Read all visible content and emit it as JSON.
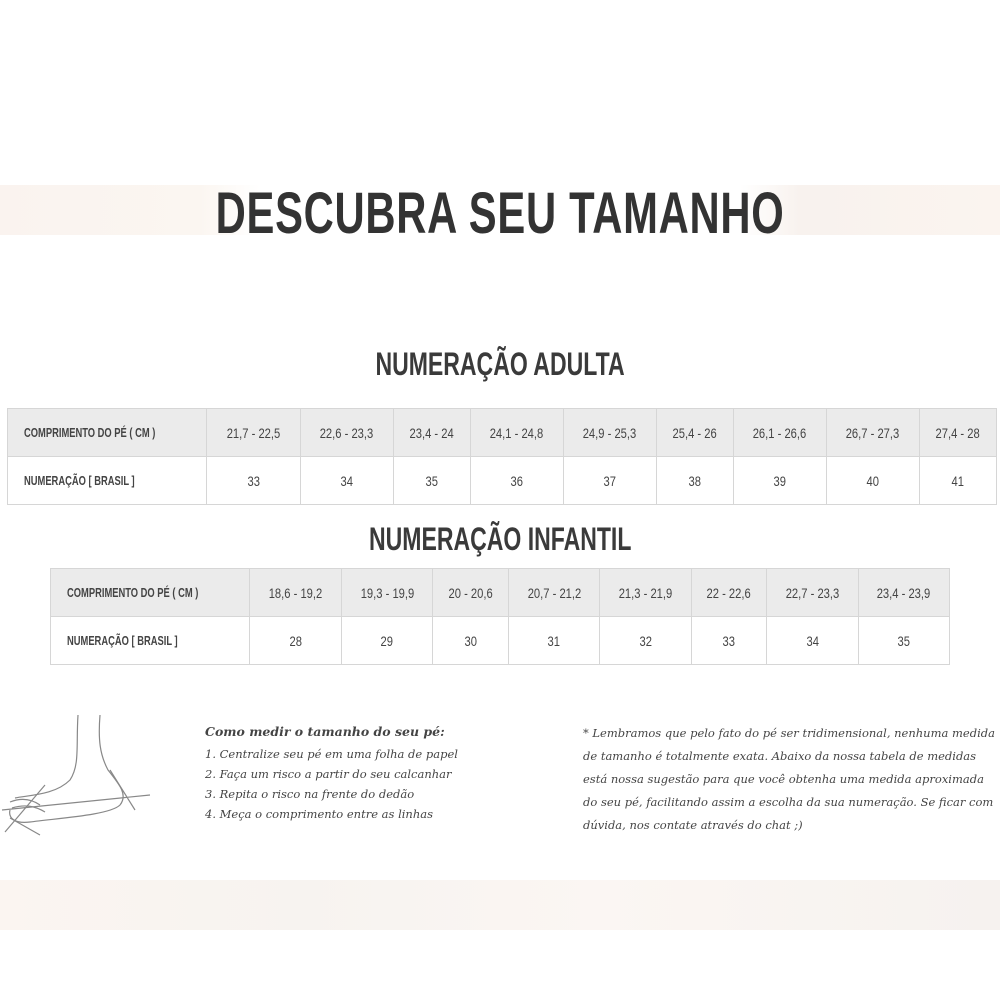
{
  "title": "DESCUBRA SEU TAMANHO",
  "adult": {
    "title": "NUMERAÇÃO ADULTA",
    "row_labels": [
      "COMPRIMENTO DO PÉ ( CM )",
      "NUMERAÇÃO [ BRASIL ]"
    ],
    "lengths": [
      "21,7 - 22,5",
      "22,6 - 23,3",
      "23,4 - 24",
      "24,1 - 24,8",
      "24,9 - 25,3",
      "25,4 - 26",
      "26,1 - 26,6",
      "26,7 - 27,3",
      "27,4 - 28"
    ],
    "sizes": [
      "33",
      "34",
      "35",
      "36",
      "37",
      "38",
      "39",
      "40",
      "41"
    ]
  },
  "child": {
    "title": "NUMERAÇÃO INFANTIL",
    "row_labels": [
      "COMPRIMENTO DO PÉ ( CM )",
      "NUMERAÇÃO [ BRASIL ]"
    ],
    "lengths": [
      "18,6 - 19,2",
      "19,3 - 19,9",
      "20 - 20,6",
      "20,7 - 21,2",
      "21,3 - 21,9",
      "22 - 22,6",
      "22,7 - 23,3",
      "23,4 - 23,9"
    ],
    "sizes": [
      "28",
      "29",
      "30",
      "31",
      "32",
      "33",
      "34",
      "35"
    ]
  },
  "howto": {
    "heading": "Como medir o tamanho do seu pé:",
    "steps": [
      "1. Centralize seu pé em uma folha de papel",
      "2. Faça um risco a partir do seu calcanhar",
      "3. Repita o risco na frente do dedão",
      "4. Meça o comprimento entre as linhas"
    ]
  },
  "note": "* Lembramos que pelo fato do pé ser tridimensional, nenhuma medida de tamanho é totalmente exata. Abaixo da nossa tabela de medidas está nossa sugestão para que você obtenha uma medida aproximada do seu pé, facilitando assim a escolha da sua numeração. Se ficar com dúvida, nos contate através do chat ;)",
  "icons": {
    "illustration": "foot-measure-icon"
  }
}
